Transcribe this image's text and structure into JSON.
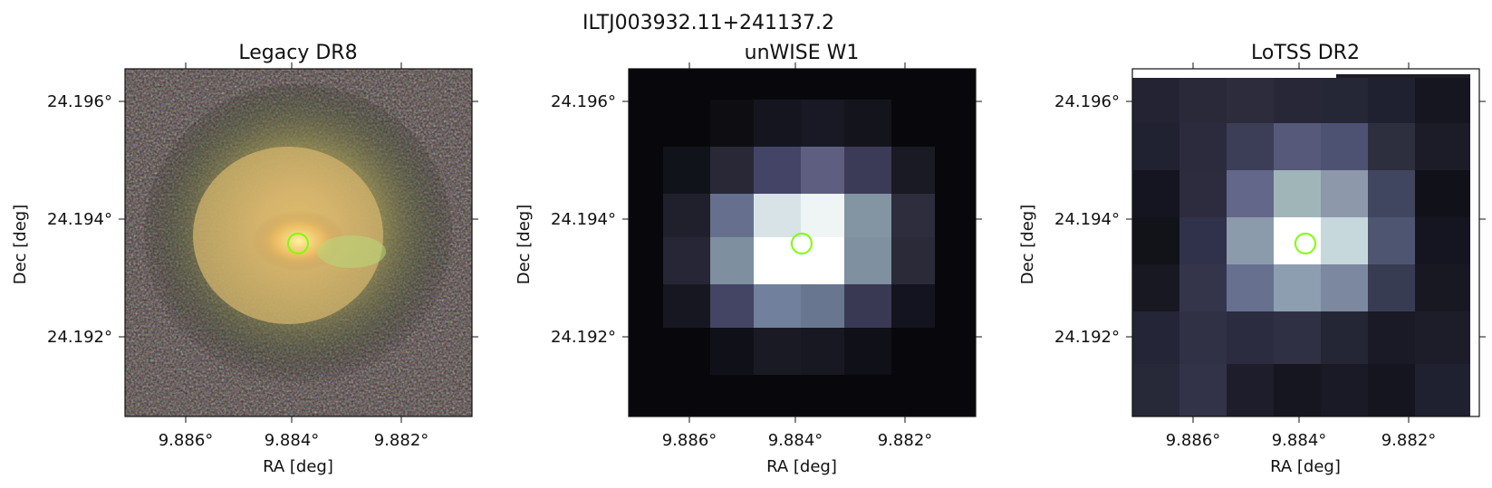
{
  "figure": {
    "title": "ILTJ003932.11+241137.2"
  },
  "panels": [
    {
      "id": "legacy",
      "title": "Legacy DR8",
      "xlabel": "RA [deg]",
      "ylabel": "Dec [deg]",
      "xticks": [
        "9.886°",
        "9.884°",
        "9.882°"
      ],
      "yticks": [
        "24.196°",
        "24.194°",
        "24.192°"
      ],
      "image_style": "colour optical galaxy image"
    },
    {
      "id": "unwise",
      "title": "unWISE W1",
      "xlabel": "RA [deg]",
      "ylabel": "Dec [deg]",
      "xticks": [
        "9.886°",
        "9.884°",
        "9.882°"
      ],
      "yticks": [
        "24.196°",
        "24.194°",
        "24.192°"
      ],
      "image_style": "grayscale pixelated infrared image"
    },
    {
      "id": "lotss",
      "title": "LoTSS DR2",
      "xlabel": "RA [deg]",
      "ylabel": "Dec [deg]",
      "xticks": [
        "9.886°",
        "9.884°",
        "9.882°"
      ],
      "yticks": [
        "24.196°",
        "24.194°",
        "24.192°"
      ],
      "image_style": "grayscale pixelated radio image"
    }
  ],
  "marker": {
    "ra": 9.88379,
    "dec": 24.19367,
    "color": "#7CFF00"
  },
  "colors": {
    "axis": "#111111",
    "background": "#ffffff"
  }
}
